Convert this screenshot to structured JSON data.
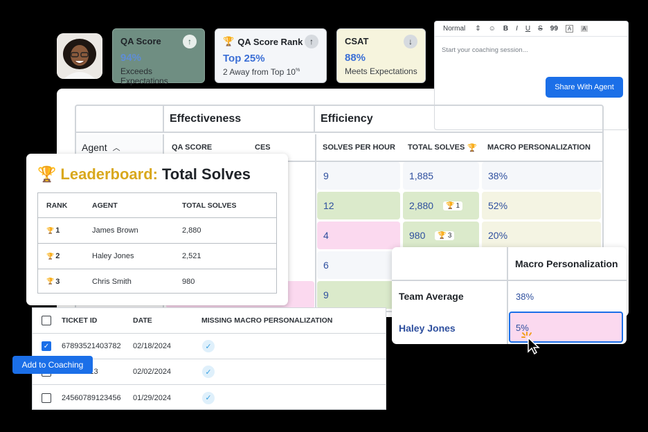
{
  "kpis": {
    "qa": {
      "title": "QA Score",
      "value": "94%",
      "sub": "Exceeds Expectations",
      "arrow": "arrow-up-icon"
    },
    "rank": {
      "title": "QA Score Rank",
      "value": "Top 25%",
      "sub": "2 Away from Top 10",
      "sub_sup": "%",
      "arrow": "arrow-up-icon"
    },
    "csat": {
      "title": "CSAT",
      "value": "88%",
      "sub": "Meets Expectations",
      "arrow": "arrow-down-icon"
    }
  },
  "editor": {
    "format_select": "Normal",
    "toolbar": [
      "B",
      "I",
      "U",
      "S",
      "99"
    ],
    "placeholder": "Start your coaching session...",
    "share_label": "Share With Agent"
  },
  "main_table": {
    "groups": [
      "Effectiveness",
      "Efficiency"
    ],
    "agent_header": "Agent",
    "columns": [
      "QA SCORE",
      "CES",
      "SOLVES PER HOUR",
      "TOTAL SOLVES",
      "MACRO PERSONALIZATION"
    ],
    "rows": [
      {
        "solves_per_hour": "9",
        "total_solves": "1,885",
        "macro": "38%"
      },
      {
        "solves_per_hour": "12",
        "total_solves": "2,880",
        "badge": "1",
        "macro": "52%"
      },
      {
        "solves_per_hour": "4",
        "total_solves": "980",
        "badge": "3",
        "macro": "20%"
      },
      {
        "solves_per_hour": "6"
      },
      {
        "solves_per_hour": "9"
      }
    ]
  },
  "leaderboard": {
    "title_gold": "Leaderboard:",
    "title_rest": "Total Solves",
    "headers": [
      "RANK",
      "AGENT",
      "TOTAL SOLVES"
    ],
    "rows": [
      {
        "rank": "1",
        "agent": "James Brown",
        "total": "2,880"
      },
      {
        "rank": "2",
        "agent": "Haley Jones",
        "total": "2,521"
      },
      {
        "rank": "3",
        "agent": "Chris Smith",
        "total": "980"
      }
    ]
  },
  "tickets": {
    "headers": [
      "TICKET ID",
      "DATE",
      "MISSING MACRO PERSONALIZATION"
    ],
    "rows": [
      {
        "id": "67893521403782",
        "date": "02/18/2024",
        "checked": true
      },
      {
        "id": "45213",
        "date": "02/02/2024",
        "checked": false
      },
      {
        "id": "24560789123456",
        "date": "01/29/2024",
        "checked": false
      }
    ],
    "coaching_label": "Add to Coaching"
  },
  "macro_popup": {
    "header": "Macro Personalization",
    "team_label": "Team Average",
    "team_value": "38%",
    "agent_label": "Haley Jones",
    "agent_value": "5%"
  },
  "colors": {
    "accent": "#1b6fe8",
    "gold": "#d9a81d",
    "value_blue": "#2e4f9e",
    "green_cell": "#dbeacb",
    "pink_cell": "#fbd9ef"
  }
}
